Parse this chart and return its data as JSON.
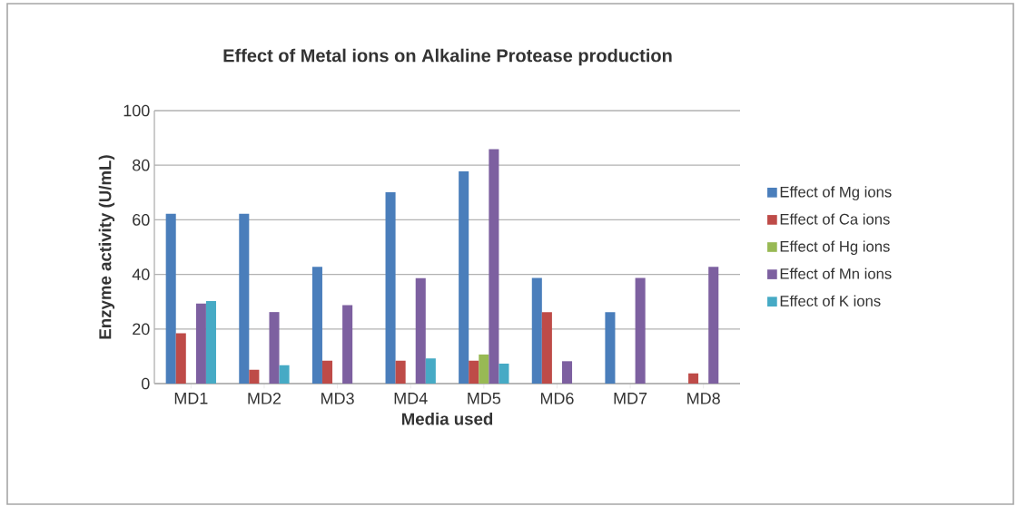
{
  "chart_data": {
    "type": "bar",
    "title": "Effect of Metal ions on Alkaline Protease production",
    "xlabel": "Media used",
    "ylabel": "Enzyme activity (U/mL)",
    "categories": [
      "MD1",
      "MD2",
      "MD3",
      "MD4",
      "MD5",
      "MD6",
      "MD7",
      "MD8"
    ],
    "series": [
      {
        "name": "Effect of Mg ions",
        "color": "#4a7ebb",
        "values": [
          62.2,
          62.2,
          42.8,
          70.1,
          77.8,
          38.7,
          26.2,
          0
        ]
      },
      {
        "name": "Effect of Ca ions",
        "color": "#be4b48",
        "values": [
          18.4,
          5.1,
          8.4,
          8.4,
          8.4,
          26.2,
          0,
          3.7
        ]
      },
      {
        "name": "Effect of Hg ions",
        "color": "#98b954",
        "values": [
          0,
          0,
          0,
          0,
          10.7,
          0,
          0,
          0
        ]
      },
      {
        "name": "Effect of Mn ions",
        "color": "#7d60a0",
        "values": [
          29.3,
          26.2,
          28.7,
          38.6,
          85.9,
          8.2,
          38.7,
          42.8
        ]
      },
      {
        "name": "Effect of K ions",
        "color": "#46aac5",
        "values": [
          30.2,
          6.7,
          0,
          9.2,
          7.3,
          0,
          0,
          0
        ]
      }
    ],
    "ylim": [
      0,
      100
    ],
    "yticks": [
      0,
      20,
      40,
      60,
      80,
      100
    ],
    "grid": "y",
    "legend": "right"
  }
}
